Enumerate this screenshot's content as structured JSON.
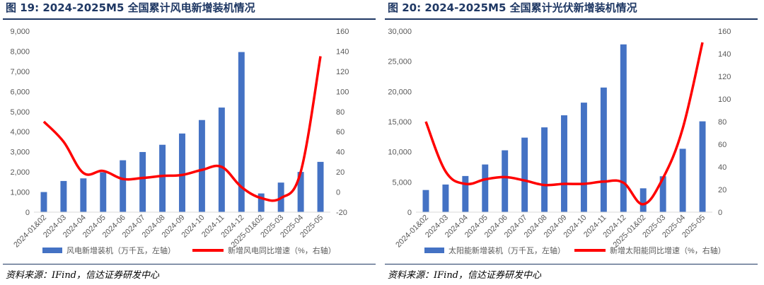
{
  "colors": {
    "bar": "#4472c4",
    "line": "#ff0000",
    "title": "#1f3864",
    "tick": "#595959",
    "grid": "#d9d9d9"
  },
  "panels": [
    {
      "title": "图 19:  2024-2025M5 全国累计风电新增装机情况",
      "source": "资料来源：IFind，信达证券研发中心",
      "chart_data": {
        "type": "bar",
        "categories": [
          "2024-01&02",
          "2024-03",
          "2024-04",
          "2024-05",
          "2024-06",
          "2024-07",
          "2024-08",
          "2024-09",
          "2024-10",
          "2024-11",
          "2024-12",
          "2025-01&02",
          "2025-03",
          "2025-04",
          "2025-05"
        ],
        "series": [
          {
            "name": "风电新增装机（万千瓦，左轴）",
            "type": "bar",
            "axis": "left",
            "values": [
              1000,
              1550,
              1680,
              1980,
              2580,
              2990,
              3350,
              3910,
              4580,
              5200,
              7960,
              930,
              1470,
              2000,
              2500
            ]
          },
          {
            "name": "新增风电同比增速（%，右轴）",
            "type": "line",
            "axis": "right",
            "values": [
              70,
              50,
              19,
              21,
              13,
              14,
              16,
              17,
              22,
              25,
              5,
              -6,
              -6,
              20,
              135
            ]
          }
        ],
        "y_left": {
          "min": 0,
          "max": 9000,
          "step": 1000,
          "tick_labels": [
            "0",
            "1,000",
            "2,000",
            "3,000",
            "4,000",
            "5,000",
            "6,000",
            "7,000",
            "8,000",
            "9,000"
          ]
        },
        "y_right": {
          "min": -20,
          "max": 160,
          "step": 20,
          "tick_labels": [
            "-20",
            "0",
            "20",
            "40",
            "60",
            "80",
            "100",
            "120",
            "140",
            "160"
          ]
        },
        "legend_placement": "bottom",
        "grid": false
      }
    },
    {
      "title": "图 20:  2024-2025M5 全国累计光伏新增装机情况",
      "source": "资料来源：IFind，信达证券研发中心",
      "chart_data": {
        "type": "bar",
        "categories": [
          "2024-01&02",
          "2024-03",
          "2024-04",
          "2024-05",
          "2024-06",
          "2024-07",
          "2024-08",
          "2024-09",
          "2024-10",
          "2024-11",
          "2024-12",
          "2025-01&02",
          "2025-03",
          "2025-04",
          "2025-05"
        ],
        "series": [
          {
            "name": "太阳能新增装机（万千瓦，左轴）",
            "type": "bar",
            "axis": "left",
            "values": [
              3670,
              4580,
              5990,
              7900,
              10250,
              12350,
              14050,
              16050,
              18150,
              20650,
              27800,
              3950,
              5950,
              10500,
              15050
            ]
          },
          {
            "name": "新增太阳能同比增速（%，右轴）",
            "type": "line",
            "axis": "right",
            "values": [
              80,
              36,
              25,
              29,
              31,
              28,
              24,
              25,
              25,
              27,
              26,
              7,
              30,
              74,
              150
            ]
          }
        ],
        "y_left": {
          "min": 0,
          "max": 30000,
          "step": 5000,
          "tick_labels": [
            "0",
            "5,000",
            "10,000",
            "15,000",
            "20,000",
            "25,000",
            "30,000"
          ]
        },
        "y_right": {
          "min": 0,
          "max": 160,
          "step": 20,
          "tick_labels": [
            "0",
            "20",
            "40",
            "60",
            "80",
            "100",
            "120",
            "140",
            "160"
          ]
        },
        "legend_placement": "bottom",
        "grid": false
      }
    }
  ]
}
